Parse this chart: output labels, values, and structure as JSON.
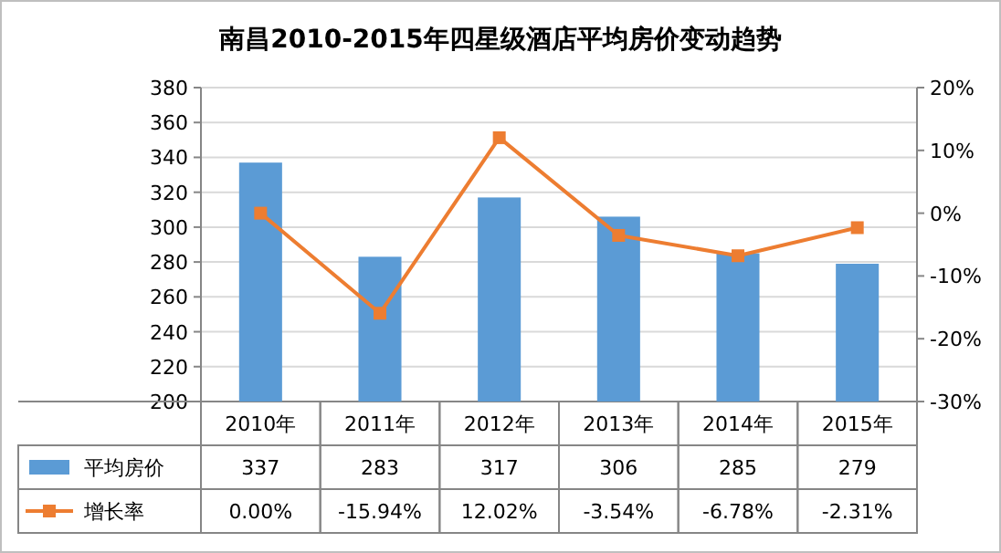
{
  "chart_data": {
    "type": "bar",
    "title": "南昌2010-2015年四星级酒店平均房价变动趋势",
    "categories": [
      "2010年",
      "2011年",
      "2012年",
      "2013年",
      "2014年",
      "2015年"
    ],
    "series": [
      {
        "name": "平均房价",
        "color": "#5b9bd5",
        "values": [
          337,
          283,
          317,
          306,
          285,
          279
        ],
        "value_labels": [
          "337",
          "283",
          "317",
          "306",
          "285",
          "279"
        ]
      },
      {
        "name": "增长率",
        "type": "line",
        "axis": "y2",
        "color": "#ed7d31",
        "marker": "square",
        "values": [
          0.0,
          -15.94,
          12.02,
          -3.54,
          -6.78,
          -2.31
        ],
        "value_labels": [
          "0.00%",
          "-15.94%",
          "12.02%",
          "-3.54%",
          "-6.78%",
          "-2.31%"
        ]
      }
    ],
    "ylim": [
      200,
      380
    ],
    "yticks": [
      200,
      220,
      240,
      260,
      280,
      300,
      320,
      340,
      360,
      380
    ],
    "y2lim": [
      -30,
      20
    ],
    "y2ticks": [
      {
        "value": -30,
        "label": "-30%"
      },
      {
        "value": -20,
        "label": "-20%"
      },
      {
        "value": -10,
        "label": "-10%"
      },
      {
        "value": 0,
        "label": "0%"
      },
      {
        "value": 10,
        "label": "10%"
      },
      {
        "value": 20,
        "label": "20%"
      }
    ],
    "grid": "y",
    "legend": "bottom"
  }
}
